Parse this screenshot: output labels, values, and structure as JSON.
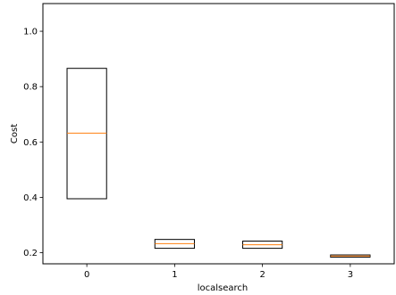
{
  "chart_data": {
    "type": "box",
    "title": "",
    "xlabel": "localsearch",
    "ylabel": "Cost",
    "categories": [
      "0",
      "1",
      "2",
      "3"
    ],
    "boxes": [
      {
        "category": "0",
        "q1": 0.395,
        "median": 0.632,
        "q3": 0.866
      },
      {
        "category": "1",
        "q1": 0.216,
        "median": 0.233,
        "q3": 0.248
      },
      {
        "category": "2",
        "q1": 0.216,
        "median": 0.229,
        "q3": 0.242
      },
      {
        "category": "3",
        "q1": 0.184,
        "median": 0.188,
        "q3": 0.192
      }
    ],
    "yticks": [
      0.2,
      0.4,
      0.6,
      0.8,
      1.0
    ],
    "ytick_labels": [
      "0.2",
      "0.4",
      "0.6",
      "0.8",
      "1.0"
    ],
    "ylim": [
      0.16,
      1.1
    ],
    "xlim": [
      -0.5,
      3.5
    ],
    "grid": false,
    "colors": {
      "box_edge": "#000000",
      "median": "#ff7f0e",
      "axes": "#000000",
      "background": "#ffffff"
    }
  }
}
